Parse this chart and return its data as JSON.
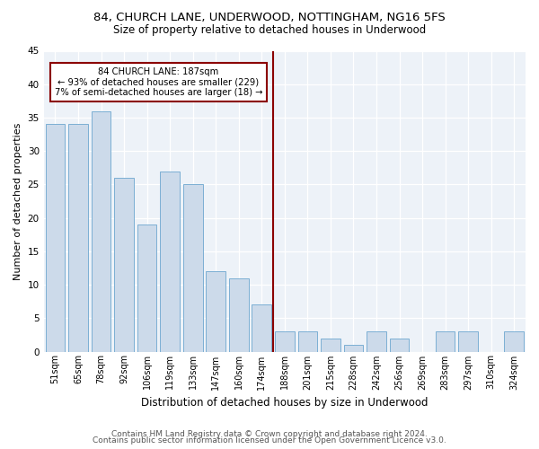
{
  "title1": "84, CHURCH LANE, UNDERWOOD, NOTTINGHAM, NG16 5FS",
  "title2": "Size of property relative to detached houses in Underwood",
  "xlabel": "Distribution of detached houses by size in Underwood",
  "ylabel": "Number of detached properties",
  "bar_labels": [
    "51sqm",
    "65sqm",
    "78sqm",
    "92sqm",
    "106sqm",
    "119sqm",
    "133sqm",
    "147sqm",
    "160sqm",
    "174sqm",
    "188sqm",
    "201sqm",
    "215sqm",
    "228sqm",
    "242sqm",
    "256sqm",
    "269sqm",
    "283sqm",
    "297sqm",
    "310sqm",
    "324sqm"
  ],
  "bar_heights": [
    34,
    34,
    36,
    26,
    19,
    27,
    25,
    12,
    11,
    7,
    3,
    3,
    2,
    1,
    3,
    2,
    0,
    3,
    3,
    0,
    3
  ],
  "property_size_idx": 10,
  "annotation_title": "84 CHURCH LANE: 187sqm",
  "annotation_line1": "← 93% of detached houses are smaller (229)",
  "annotation_line2": "7% of semi-detached houses are larger (18) →",
  "bar_color": "#ccdaea",
  "bar_edge_color": "#7bafd4",
  "vline_color": "#8b0000",
  "annotation_box_edge_color": "#8b0000",
  "background_color": "#edf2f8",
  "footer1": "Contains HM Land Registry data © Crown copyright and database right 2024.",
  "footer2": "Contains public sector information licensed under the Open Government Licence v3.0.",
  "ylim": [
    0,
    45
  ],
  "yticks": [
    0,
    5,
    10,
    15,
    20,
    25,
    30,
    35,
    40,
    45
  ],
  "title1_fontsize": 9.5,
  "title2_fontsize": 8.5,
  "ylabel_fontsize": 8,
  "xlabel_fontsize": 8.5,
  "tick_fontsize": 7,
  "footer_fontsize": 6.5
}
